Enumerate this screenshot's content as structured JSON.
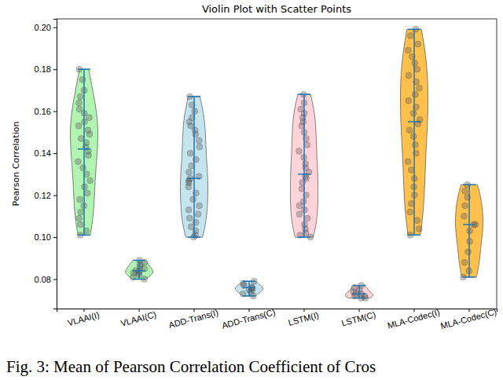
{
  "chart_data": {
    "type": "violin",
    "title": "Violin Plot with Scatter Points",
    "y_label": "Pearson Correlation",
    "caption": "Fig. 3: Mean of Pearson Correlation Coefficient of Cros",
    "categories": [
      "VLAAI(I)",
      "VLAAI(C)",
      "ADD-Trans(I)",
      "ADD-Trans(C)",
      "LSTM(I)",
      "LSTM(C)",
      "MLA-Codec(I)",
      "MLA-Codec(C)"
    ],
    "colors": [
      "#90ee90",
      "#90ee90",
      "#add8e6",
      "#add8e6",
      "#ffc0cb",
      "#ffc0cb",
      "#ffa500",
      "#ffa500"
    ],
    "values": [
      [
        0.101,
        0.103,
        0.106,
        0.109,
        0.112,
        0.115,
        0.118,
        0.121,
        0.124,
        0.127,
        0.13,
        0.133,
        0.136,
        0.139,
        0.141,
        0.143,
        0.145,
        0.147,
        0.149,
        0.151,
        0.153,
        0.155,
        0.157,
        0.159,
        0.161,
        0.164,
        0.167,
        0.17,
        0.175,
        0.18
      ],
      [
        0.08,
        0.081,
        0.082,
        0.083,
        0.083,
        0.084,
        0.084,
        0.085,
        0.086,
        0.087,
        0.088,
        0.089
      ],
      [
        0.1,
        0.101,
        0.103,
        0.105,
        0.107,
        0.109,
        0.111,
        0.113,
        0.115,
        0.118,
        0.121,
        0.124,
        0.126,
        0.127,
        0.128,
        0.129,
        0.131,
        0.134,
        0.137,
        0.14,
        0.143,
        0.146,
        0.149,
        0.151,
        0.153,
        0.155,
        0.157,
        0.16,
        0.163,
        0.167
      ],
      [
        0.072,
        0.073,
        0.074,
        0.075,
        0.075,
        0.076,
        0.076,
        0.077,
        0.078,
        0.079
      ],
      [
        0.1,
        0.101,
        0.102,
        0.104,
        0.106,
        0.109,
        0.111,
        0.113,
        0.115,
        0.117,
        0.12,
        0.123,
        0.126,
        0.128,
        0.129,
        0.131,
        0.133,
        0.135,
        0.138,
        0.141,
        0.144,
        0.147,
        0.15,
        0.153,
        0.155,
        0.157,
        0.159,
        0.161,
        0.164,
        0.168
      ],
      [
        0.071,
        0.071,
        0.072,
        0.072,
        0.073,
        0.073,
        0.074,
        0.075,
        0.076,
        0.077
      ],
      [
        0.101,
        0.104,
        0.108,
        0.112,
        0.116,
        0.12,
        0.124,
        0.128,
        0.132,
        0.136,
        0.14,
        0.144,
        0.148,
        0.151,
        0.154,
        0.156,
        0.159,
        0.162,
        0.165,
        0.168,
        0.171,
        0.174,
        0.177,
        0.18,
        0.183,
        0.186,
        0.189,
        0.192,
        0.196,
        0.199
      ],
      [
        0.081,
        0.084,
        0.088,
        0.093,
        0.098,
        0.103,
        0.106,
        0.106,
        0.11,
        0.115,
        0.119,
        0.122,
        0.125
      ]
    ],
    "min": [
      0.101,
      0.08,
      0.1,
      0.072,
      0.1,
      0.071,
      0.101,
      0.081
    ],
    "median": [
      0.142,
      0.084,
      0.128,
      0.076,
      0.13,
      0.073,
      0.155,
      0.106
    ],
    "max": [
      0.18,
      0.089,
      0.167,
      0.079,
      0.168,
      0.077,
      0.199,
      0.125
    ],
    "ylim": [
      0.066,
      0.204
    ],
    "yticks": [
      0.08,
      {
        "value": 0.1,
        "label": "0.10"
      },
      0.12,
      0.14,
      0.16,
      0.18,
      {
        "value": 0.2,
        "label": "0.20"
      }
    ],
    "grid": false
  }
}
